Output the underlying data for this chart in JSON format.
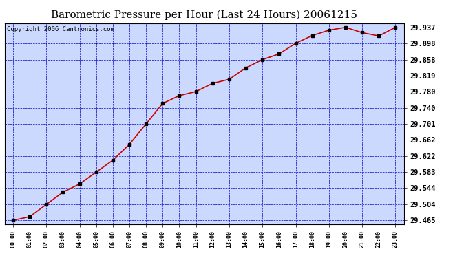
{
  "title": "Barometric Pressure per Hour (Last 24 Hours) 20061215",
  "copyright": "Copyright 2006 Cantronics.com",
  "x_labels": [
    "00:00",
    "01:00",
    "02:00",
    "03:00",
    "04:00",
    "05:00",
    "06:00",
    "07:00",
    "08:00",
    "09:00",
    "10:00",
    "11:00",
    "12:00",
    "13:00",
    "14:00",
    "15:00",
    "16:00",
    "17:00",
    "18:00",
    "19:00",
    "20:00",
    "21:00",
    "22:00",
    "23:00"
  ],
  "y_values": [
    29.465,
    29.474,
    29.504,
    29.534,
    29.554,
    29.583,
    29.612,
    29.651,
    29.701,
    29.751,
    29.77,
    29.78,
    29.8,
    29.81,
    29.838,
    29.858,
    29.872,
    29.898,
    29.917,
    29.93,
    29.937,
    29.924,
    29.916,
    29.937
  ],
  "yticks": [
    29.465,
    29.504,
    29.544,
    29.583,
    29.622,
    29.662,
    29.701,
    29.74,
    29.78,
    29.819,
    29.858,
    29.898,
    29.937
  ],
  "ylim": [
    29.455,
    29.947
  ],
  "line_color": "#cc0000",
  "marker_color": "#000000",
  "bg_color": "#ccd9ff",
  "grid_color": "#0000bb",
  "title_fontsize": 11,
  "copyright_fontsize": 6.5
}
